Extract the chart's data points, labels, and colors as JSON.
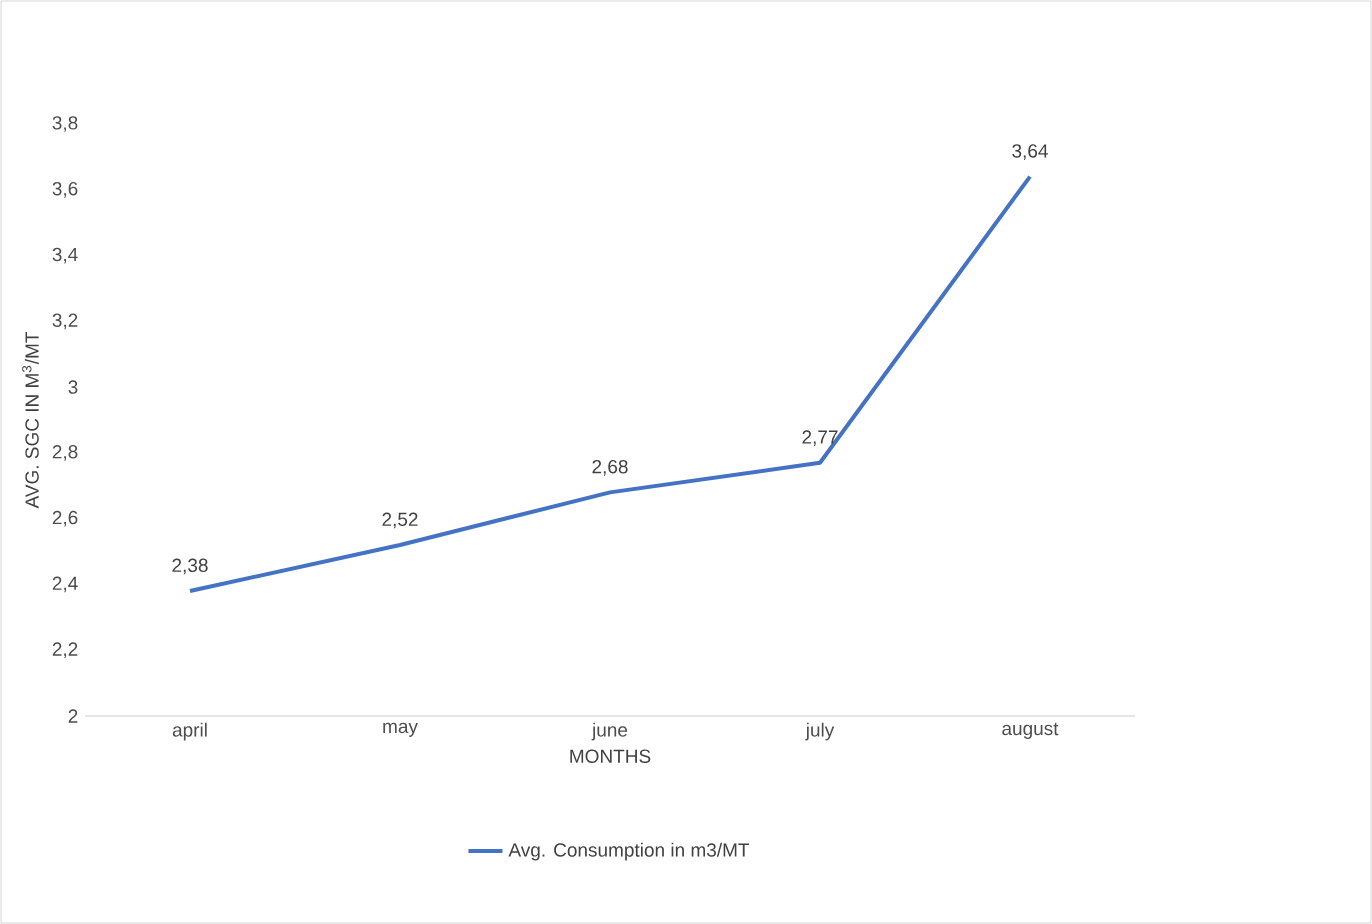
{
  "chart_data": {
    "type": "line",
    "categories": [
      "april",
      "may",
      "june",
      "july",
      "august"
    ],
    "series": [
      {
        "name": "Avg. Consumption in m3/MT",
        "color": "#4472c4",
        "values": [
          2.38,
          2.52,
          2.68,
          2.77,
          3.64
        ],
        "value_labels": [
          "2,38",
          "2,52",
          "2,68",
          "2,77",
          "3,64"
        ]
      }
    ],
    "xlabel": "MONTHS",
    "ylabel": "AVG. SGC IN M$^{3}$/MT",
    "ylim": [
      2,
      3.8
    ],
    "yticks": [
      {
        "value": 2,
        "label": "2"
      },
      {
        "value": 2.2,
        "label": "2,2"
      },
      {
        "value": 2.4,
        "label": "2,4"
      },
      {
        "value": 2.6,
        "label": "2,6"
      },
      {
        "value": 2.8,
        "label": "2,8"
      },
      {
        "value": 3,
        "label": "3"
      },
      {
        "value": 3.2,
        "label": "3,2"
      },
      {
        "value": 3.4,
        "label": "3,4"
      },
      {
        "value": 3.6,
        "label": "3,6"
      },
      {
        "value": 3.8,
        "label": "3,8"
      }
    ],
    "grid": false,
    "legend": "bottom",
    "marker": "none",
    "line_style": "solid"
  }
}
